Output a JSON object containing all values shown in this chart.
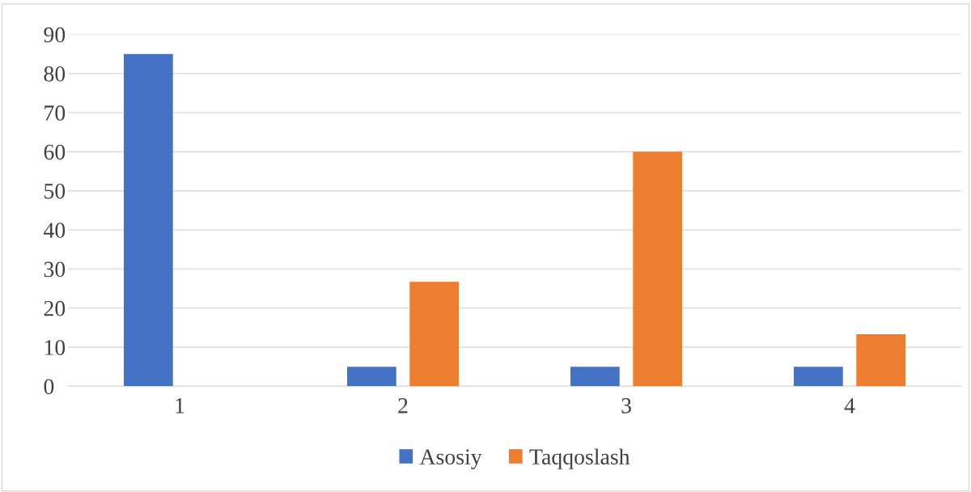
{
  "chart_data": {
    "type": "bar",
    "categories": [
      "1",
      "2",
      "3",
      "4"
    ],
    "series": [
      {
        "name": "Asosiy",
        "color": "#4472c4",
        "values": [
          85,
          5,
          5,
          5
        ]
      },
      {
        "name": "Taqqoslash",
        "color": "#ed7d31",
        "values": [
          0,
          26.7,
          60,
          13.3
        ]
      }
    ],
    "ylim": [
      0,
      90
    ],
    "yticks": [
      0,
      10,
      20,
      30,
      40,
      50,
      60,
      70,
      80,
      90
    ],
    "grid": "y",
    "legend": "bottom"
  }
}
